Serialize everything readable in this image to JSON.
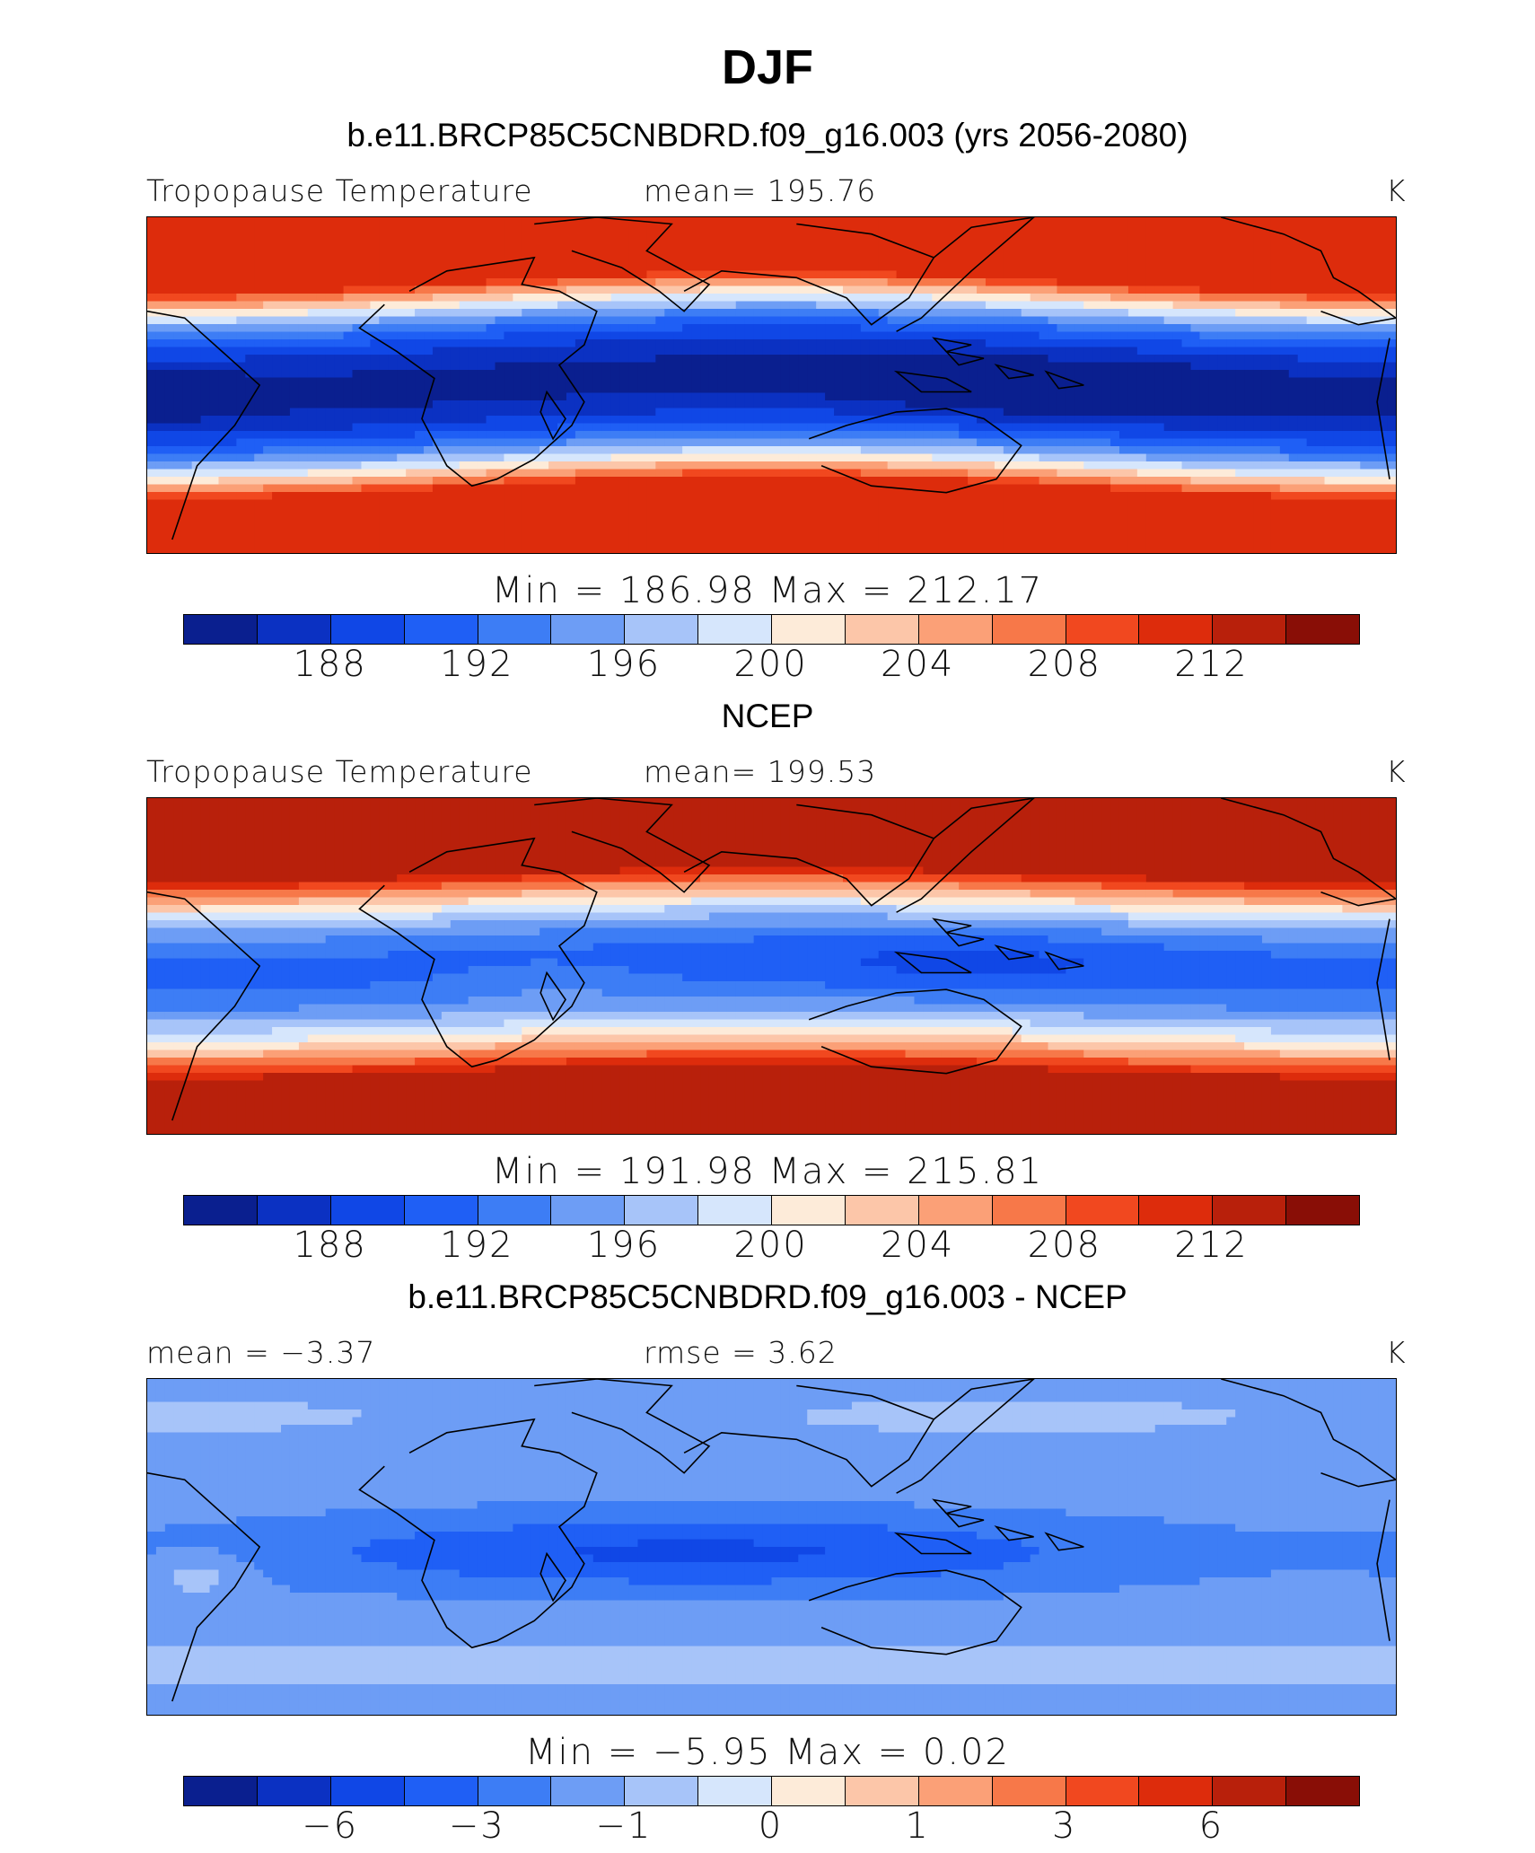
{
  "title": "DJF",
  "colors": [
    "#0a1f8f",
    "#0b31c2",
    "#1047e6",
    "#1f5ff5",
    "#3d7df5",
    "#6d9df5",
    "#a7c4f9",
    "#d6e6fc",
    "#fdebd9",
    "#fcc6a9",
    "#fba077",
    "#f77849",
    "#f1481f",
    "#dd2c0c",
    "#b8200b",
    "#890e06"
  ],
  "panels": [
    {
      "title": "b.e11.BRCP85C5CNBDRD.f09_g16.003 (yrs 2056-2080)",
      "left_label": "Tropopause Temperature",
      "center_label": "mean=  195.76",
      "units": "K",
      "minmax": "Min  =  186.98  Max  =  212.17",
      "ticks": [
        "188",
        "192",
        "196",
        "200",
        "204",
        "208",
        "212"
      ]
    },
    {
      "title": "NCEP",
      "left_label": "Tropopause Temperature",
      "center_label": "mean=  199.53",
      "units": "K",
      "minmax": "Min  =  191.98  Max  =  215.81",
      "ticks": [
        "188",
        "192",
        "196",
        "200",
        "204",
        "208",
        "212"
      ]
    },
    {
      "title": "b.e11.BRCP85C5CNBDRD.f09_g16.003 - NCEP",
      "left_label": "mean =    −3.37",
      "center_label": "rmse =      3.62",
      "units": "K",
      "minmax": "Min  =    −5.95  Max  =      0.02",
      "ticks": [
        "−6",
        "−3",
        "−1",
        "0",
        "1",
        "3",
        "6"
      ]
    }
  ],
  "chart_data": [
    {
      "type": "heatmap",
      "title": "b.e11.BRCP85C5CNBDRD.f09_g16.003 (yrs 2056-2080)",
      "variable": "Tropopause Temperature",
      "units": "K",
      "mean": 195.76,
      "min": 186.98,
      "max": 212.17,
      "contour_levels": [
        186,
        188,
        190,
        192,
        194,
        196,
        198,
        200,
        202,
        204,
        206,
        208,
        210,
        212,
        214
      ],
      "colorbar_ticks": [
        188,
        192,
        196,
        200,
        204,
        208,
        212
      ]
    },
    {
      "type": "heatmap",
      "title": "NCEP",
      "variable": "Tropopause Temperature",
      "units": "K",
      "mean": 199.53,
      "min": 191.98,
      "max": 215.81,
      "contour_levels": [
        186,
        188,
        190,
        192,
        194,
        196,
        198,
        200,
        202,
        204,
        206,
        208,
        210,
        212,
        214
      ],
      "colorbar_ticks": [
        188,
        192,
        196,
        200,
        204,
        208,
        212
      ]
    },
    {
      "type": "heatmap",
      "title": "b.e11.BRCP85C5CNBDRD.f09_g16.003 - NCEP",
      "units": "K",
      "mean": -3.37,
      "rmse": 3.62,
      "min": -5.95,
      "max": 0.02,
      "colorbar_ticks": [
        -6,
        -3,
        -1,
        0,
        1,
        3,
        6
      ]
    }
  ]
}
